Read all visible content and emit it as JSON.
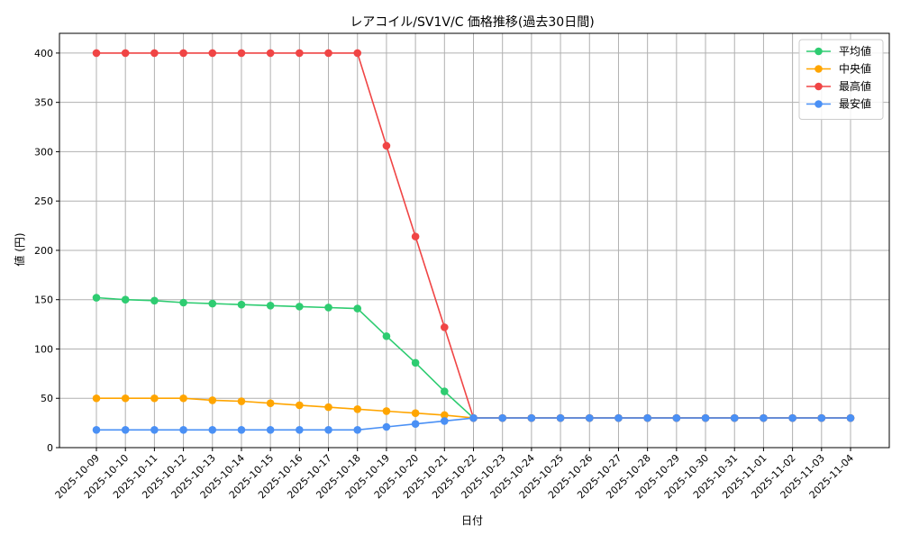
{
  "chart_data": {
    "type": "line",
    "title": "レアコイル/SV1V/C 価格推移(過去30日間)",
    "xlabel": "日付",
    "ylabel": "値 (円)",
    "ylim": [
      0,
      420
    ],
    "yticks": [
      0,
      50,
      100,
      150,
      200,
      250,
      300,
      350,
      400
    ],
    "grid": true,
    "legend_position": "top-right",
    "x": [
      "2025-10-09",
      "2025-10-10",
      "2025-10-11",
      "2025-10-12",
      "2025-10-13",
      "2025-10-14",
      "2025-10-15",
      "2025-10-16",
      "2025-10-17",
      "2025-10-18",
      "2025-10-19",
      "2025-10-20",
      "2025-10-21",
      "2025-10-22",
      "2025-10-23",
      "2025-10-24",
      "2025-10-25",
      "2025-10-26",
      "2025-10-27",
      "2025-10-28",
      "2025-10-29",
      "2025-10-30",
      "2025-10-31",
      "2025-11-01",
      "2025-11-02",
      "2025-11-03",
      "2025-11-04"
    ],
    "series": [
      {
        "name": "平均値",
        "color": "#2ecc71",
        "values": [
          152,
          150,
          149,
          147,
          146,
          145,
          144,
          143,
          142,
          141,
          113,
          86,
          57,
          30,
          30,
          30,
          30,
          30,
          30,
          30,
          30,
          30,
          30,
          30,
          30,
          30,
          30
        ]
      },
      {
        "name": "中央値",
        "color": "#ffa500",
        "values": [
          50,
          50,
          50,
          50,
          48,
          47,
          45,
          43,
          41,
          39,
          37,
          35,
          33,
          30,
          30,
          30,
          30,
          30,
          30,
          30,
          30,
          30,
          30,
          30,
          30,
          30,
          30
        ]
      },
      {
        "name": "最高値",
        "color": "#f04545",
        "values": [
          400,
          400,
          400,
          400,
          400,
          400,
          400,
          400,
          400,
          400,
          306,
          214,
          122,
          30,
          30,
          30,
          30,
          30,
          30,
          30,
          30,
          30,
          30,
          30,
          30,
          30,
          30
        ]
      },
      {
        "name": "最安値",
        "color": "#4a90f5",
        "values": [
          18,
          18,
          18,
          18,
          18,
          18,
          18,
          18,
          18,
          18,
          21,
          24,
          27,
          30,
          30,
          30,
          30,
          30,
          30,
          30,
          30,
          30,
          30,
          30,
          30,
          30,
          30
        ]
      }
    ]
  }
}
